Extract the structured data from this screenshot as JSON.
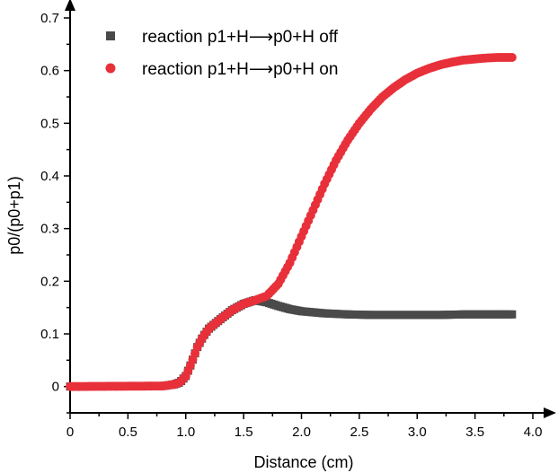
{
  "chart_data": {
    "type": "scatter",
    "xlabel": "Distance (cm)",
    "ylabel": "p0/(p0+p1)",
    "xlim": [
      0,
      4.0
    ],
    "ylim": [
      -0.05,
      0.7
    ],
    "x_ticks": [
      "0",
      "0.5",
      "1.0",
      "1.5",
      "2.0",
      "2.5",
      "3.0",
      "3.5",
      "4.0"
    ],
    "y_ticks": [
      "0",
      "0.1",
      "0.2",
      "0.3",
      "0.4",
      "0.5",
      "0.6",
      "0.7"
    ],
    "grid": false,
    "legend_position": "top-left",
    "series": [
      {
        "name": "reaction p1+H⟶p0+H off",
        "marker": "square",
        "color": "#4a4a4a",
        "x": [
          0.0,
          0.8,
          0.9,
          0.95,
          1.0,
          1.05,
          1.1,
          1.15,
          1.2,
          1.3,
          1.4,
          1.5,
          1.6,
          1.7,
          1.8,
          1.9,
          2.0,
          2.2,
          2.4,
          2.6,
          2.8,
          3.0,
          3.2,
          3.4,
          3.6,
          3.83
        ],
        "y": [
          0.0,
          0.001,
          0.004,
          0.008,
          0.02,
          0.045,
          0.075,
          0.095,
          0.11,
          0.128,
          0.145,
          0.157,
          0.164,
          0.16,
          0.153,
          0.147,
          0.143,
          0.139,
          0.137,
          0.136,
          0.136,
          0.136,
          0.136,
          0.137,
          0.137,
          0.137
        ]
      },
      {
        "name": "reaction p1+H⟶p0+H on",
        "marker": "circle",
        "color": "#e8303a",
        "x": [
          0.0,
          0.8,
          0.9,
          0.95,
          1.0,
          1.05,
          1.1,
          1.15,
          1.2,
          1.3,
          1.4,
          1.5,
          1.6,
          1.7,
          1.8,
          1.9,
          2.0,
          2.1,
          2.2,
          2.3,
          2.4,
          2.5,
          2.6,
          2.7,
          2.8,
          2.9,
          3.0,
          3.1,
          3.2,
          3.3,
          3.4,
          3.5,
          3.6,
          3.7,
          3.83
        ],
        "y": [
          0.0,
          0.001,
          0.004,
          0.008,
          0.02,
          0.045,
          0.075,
          0.095,
          0.11,
          0.128,
          0.145,
          0.157,
          0.164,
          0.172,
          0.195,
          0.235,
          0.285,
          0.335,
          0.385,
          0.43,
          0.468,
          0.5,
          0.527,
          0.55,
          0.568,
          0.583,
          0.595,
          0.604,
          0.611,
          0.616,
          0.62,
          0.622,
          0.624,
          0.625,
          0.625
        ]
      }
    ]
  }
}
